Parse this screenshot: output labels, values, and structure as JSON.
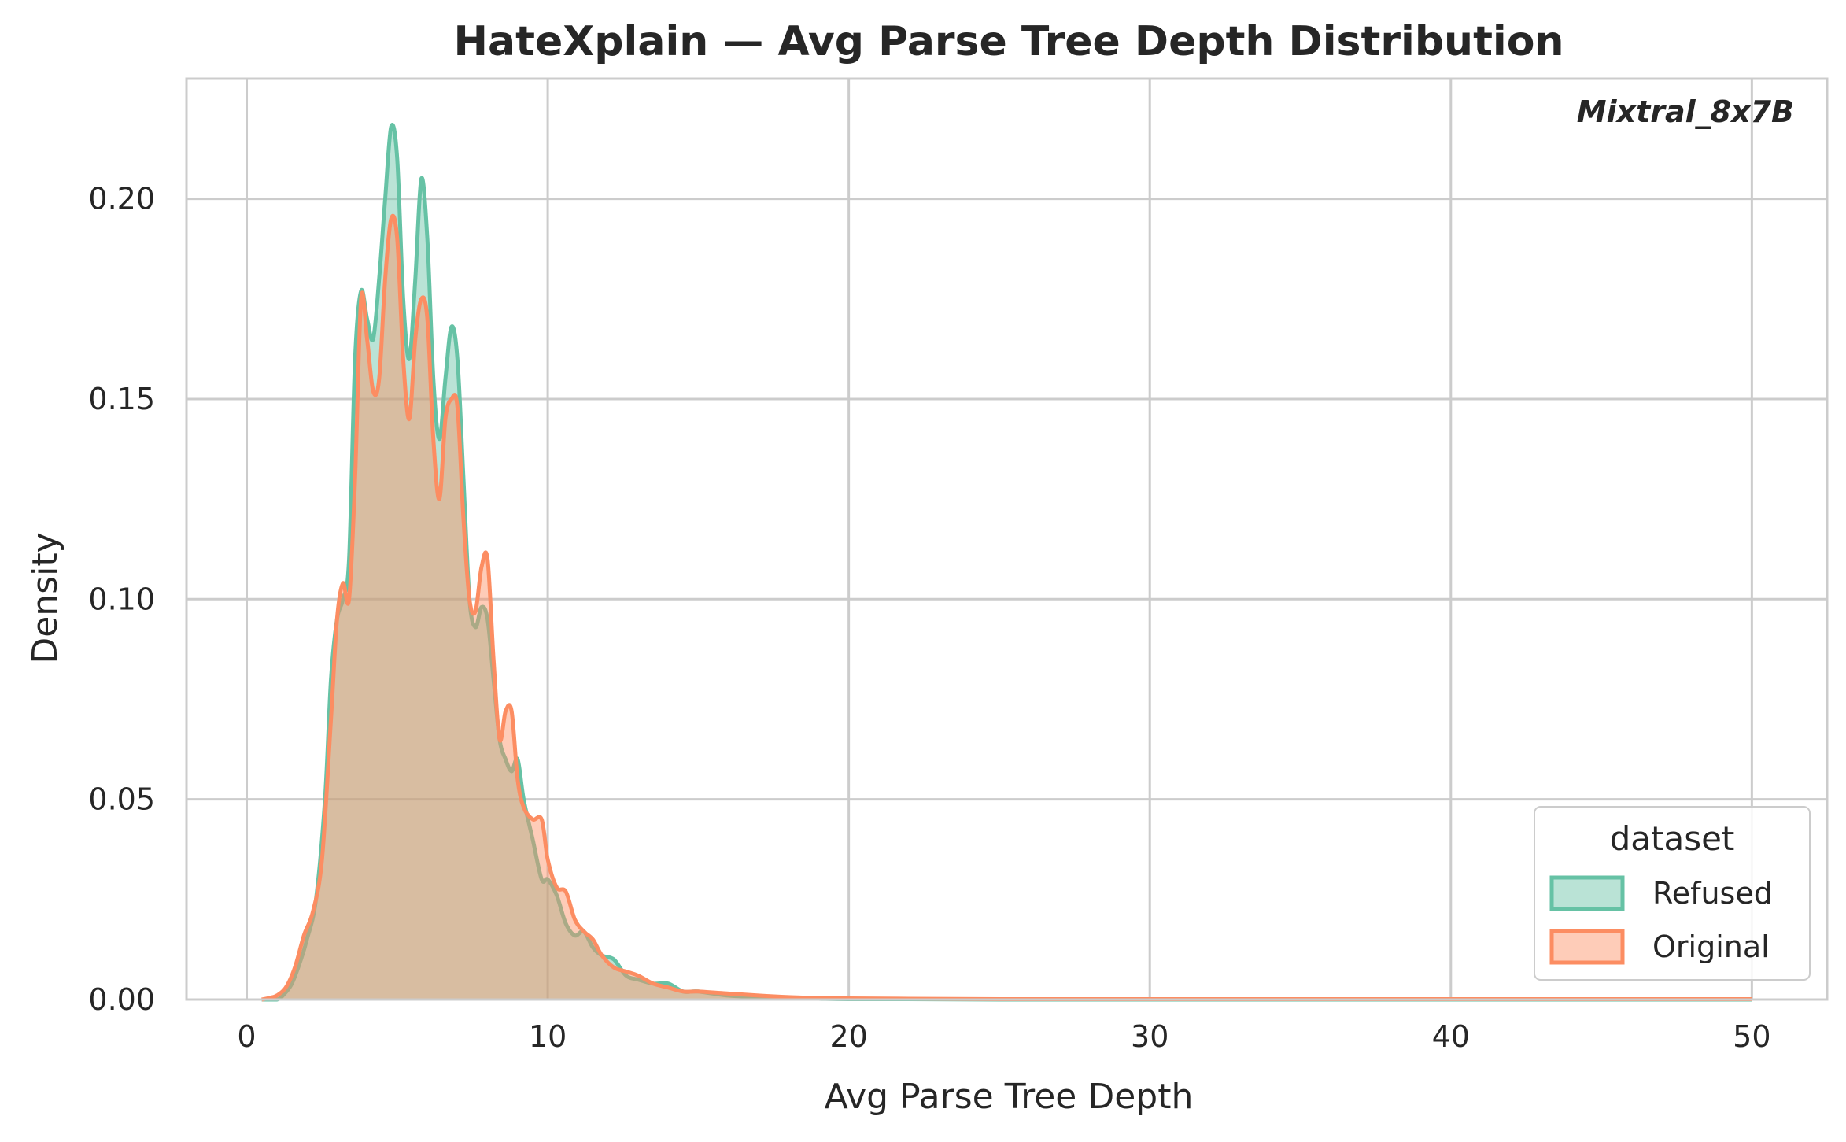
{
  "colors": {
    "refused": "#66c2a5",
    "original": "#fc8d62",
    "grid": "#cccccc",
    "text": "#262626"
  },
  "chart_data": {
    "type": "area",
    "title": "HateXplain — Avg Parse Tree Depth Distribution",
    "xlabel": "Avg Parse Tree Depth",
    "ylabel": "Density",
    "xlim": [
      -2,
      52.5
    ],
    "ylim": [
      0,
      0.23
    ],
    "xticks": [
      0,
      10,
      20,
      30,
      40,
      50
    ],
    "yticks": [
      0.0,
      0.05,
      0.1,
      0.15,
      0.2
    ],
    "ytick_labels": [
      "0.00",
      "0.05",
      "0.10",
      "0.15",
      "0.20"
    ],
    "grid": true,
    "annotation": "Mixtral_8x7B",
    "legend": {
      "title": "dataset",
      "placement": "bottom-right"
    },
    "series": [
      {
        "name": "Refused",
        "color": "#66c2a5",
        "x": [
          0.5,
          1.0,
          1.2,
          1.5,
          1.8,
          2.0,
          2.3,
          2.6,
          2.8,
          3.0,
          3.2,
          3.4,
          3.6,
          3.8,
          4.0,
          4.2,
          4.4,
          4.6,
          4.8,
          5.0,
          5.2,
          5.4,
          5.6,
          5.8,
          6.0,
          6.2,
          6.4,
          6.6,
          6.8,
          7.0,
          7.2,
          7.4,
          7.6,
          7.8,
          8.0,
          8.2,
          8.4,
          8.6,
          8.8,
          9.0,
          9.2,
          9.5,
          9.8,
          10.0,
          10.3,
          10.6,
          10.9,
          11.2,
          11.5,
          11.8,
          12.2,
          12.6,
          13.0,
          13.5,
          14.0,
          14.5,
          15.0,
          16.0,
          17.0,
          18.0,
          19.0,
          20.0,
          22.0,
          25.0,
          30.0,
          40.0,
          50.0
        ],
        "y": [
          0.0,
          0.0,
          0.001,
          0.004,
          0.01,
          0.015,
          0.025,
          0.05,
          0.08,
          0.095,
          0.1,
          0.11,
          0.16,
          0.177,
          0.17,
          0.165,
          0.18,
          0.2,
          0.218,
          0.21,
          0.175,
          0.16,
          0.18,
          0.205,
          0.19,
          0.155,
          0.14,
          0.155,
          0.168,
          0.16,
          0.13,
          0.1,
          0.093,
          0.098,
          0.095,
          0.08,
          0.065,
          0.06,
          0.057,
          0.06,
          0.05,
          0.04,
          0.03,
          0.03,
          0.026,
          0.019,
          0.016,
          0.017,
          0.013,
          0.011,
          0.01,
          0.006,
          0.005,
          0.004,
          0.004,
          0.002,
          0.002,
          0.001,
          0.0006,
          0.0004,
          0.0002,
          0.0001,
          0.0001,
          0.0,
          0.0,
          0.0,
          0.0
        ]
      },
      {
        "name": "Original",
        "color": "#fc8d62",
        "x": [
          0.5,
          0.8,
          1.0,
          1.3,
          1.6,
          1.9,
          2.2,
          2.5,
          2.8,
          3.0,
          3.2,
          3.4,
          3.6,
          3.8,
          4.0,
          4.2,
          4.4,
          4.6,
          4.8,
          5.0,
          5.2,
          5.4,
          5.6,
          5.8,
          6.0,
          6.2,
          6.4,
          6.6,
          6.8,
          7.0,
          7.2,
          7.4,
          7.6,
          7.8,
          8.0,
          8.2,
          8.4,
          8.6,
          8.8,
          9.0,
          9.2,
          9.5,
          9.8,
          10.0,
          10.3,
          10.6,
          10.9,
          11.2,
          11.5,
          11.8,
          12.2,
          12.6,
          13.0,
          13.5,
          14.0,
          14.5,
          15.0,
          16.0,
          17.0,
          18.0,
          19.0,
          20.0,
          22.0,
          25.0,
          30.0,
          40.0,
          50.0
        ],
        "y": [
          0.0,
          0.0005,
          0.001,
          0.003,
          0.008,
          0.016,
          0.022,
          0.035,
          0.07,
          0.095,
          0.104,
          0.1,
          0.13,
          0.175,
          0.165,
          0.152,
          0.155,
          0.18,
          0.195,
          0.19,
          0.16,
          0.145,
          0.165,
          0.175,
          0.17,
          0.14,
          0.125,
          0.145,
          0.15,
          0.148,
          0.12,
          0.1,
          0.097,
          0.108,
          0.11,
          0.085,
          0.065,
          0.072,
          0.072,
          0.055,
          0.048,
          0.045,
          0.045,
          0.035,
          0.028,
          0.027,
          0.02,
          0.017,
          0.015,
          0.011,
          0.008,
          0.007,
          0.006,
          0.004,
          0.003,
          0.002,
          0.002,
          0.0015,
          0.001,
          0.0006,
          0.0004,
          0.0003,
          0.0002,
          0.0001,
          0.0001,
          0.0001,
          0.0001
        ]
      }
    ]
  }
}
